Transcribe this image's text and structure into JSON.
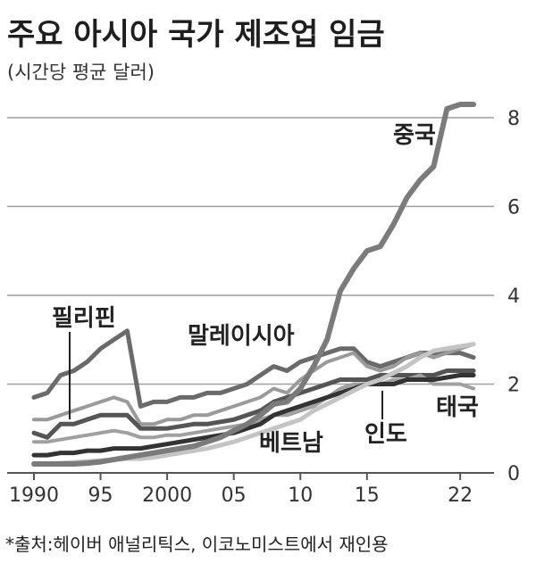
{
  "title": "주요 아시아 국가 제조업 임금",
  "subtitle": "(시간당 평균 달러)",
  "source_note": "*출처:헤이버 애널리틱스, 이코노미스트에서 재인용",
  "colors": {
    "china": "#7b7b7b",
    "philippines": "#6a6a6a",
    "malaysia": "#9a9a9a",
    "india": "#333333",
    "thailand": "#a0a0a0",
    "vietnam": "#c4c4c4",
    "extra": "#555555",
    "grid": "#9e9e9e"
  },
  "chart_data": {
    "type": "line",
    "title": "주요 아시아 국가 제조업 임금",
    "subtitle": "(시간당 평균 달러)",
    "xlabel": "",
    "ylabel": "",
    "xlim": [
      1990,
      2024
    ],
    "ylim": [
      0,
      8.4
    ],
    "grid": true,
    "x_ticks": [
      {
        "value": 1990,
        "label": "1990"
      },
      {
        "value": 1995,
        "label": "95"
      },
      {
        "value": 2000,
        "label": "2000"
      },
      {
        "value": 2005,
        "label": "05"
      },
      {
        "value": 2010,
        "label": "10"
      },
      {
        "value": 2015,
        "label": "15"
      },
      {
        "value": 2022,
        "label": "22"
      }
    ],
    "y_ticks": [
      {
        "value": 0,
        "label": "0"
      },
      {
        "value": 2,
        "label": "2"
      },
      {
        "value": 4,
        "label": "4"
      },
      {
        "value": 6,
        "label": "6"
      },
      {
        "value": 8,
        "label": "8"
      }
    ],
    "series": [
      {
        "name": "필리핀",
        "color_key": "philippines",
        "width": 5,
        "x": [
          1990,
          1991,
          1992,
          1993,
          1994,
          1995,
          1996,
          1997,
          1998,
          1999,
          2000,
          2001,
          2002,
          2003,
          2004,
          2005,
          2006,
          2007,
          2008,
          2009,
          2010,
          2011,
          2012,
          2013,
          2014,
          2015,
          2016,
          2017,
          2018,
          2019,
          2020,
          2021,
          2022,
          2023
        ],
        "y": [
          1.7,
          1.8,
          2.2,
          2.3,
          2.5,
          2.8,
          3.0,
          3.2,
          1.5,
          1.6,
          1.6,
          1.7,
          1.7,
          1.8,
          1.8,
          1.9,
          2.0,
          2.2,
          2.4,
          2.3,
          2.5,
          2.6,
          2.7,
          2.8,
          2.8,
          2.5,
          2.4,
          2.5,
          2.6,
          2.7,
          2.7,
          2.7,
          2.7,
          2.6
        ]
      },
      {
        "name": "말레이시아",
        "color_key": "malaysia",
        "width": 4,
        "x": [
          1990,
          1991,
          1992,
          1993,
          1994,
          1995,
          1996,
          1997,
          1998,
          1999,
          2000,
          2001,
          2002,
          2003,
          2004,
          2005,
          2006,
          2007,
          2008,
          2009,
          2010,
          2011,
          2012,
          2013,
          2014,
          2015,
          2016,
          2017,
          2018,
          2019,
          2020,
          2021,
          2022,
          2023
        ],
        "y": [
          1.2,
          1.2,
          1.3,
          1.4,
          1.5,
          1.6,
          1.7,
          1.6,
          1.1,
          1.1,
          1.2,
          1.2,
          1.3,
          1.3,
          1.4,
          1.5,
          1.6,
          1.7,
          1.9,
          1.8,
          2.1,
          2.3,
          2.5,
          2.6,
          2.7,
          2.4,
          2.3,
          2.4,
          2.6,
          2.7,
          2.6,
          2.7,
          2.8,
          2.9
        ]
      },
      {
        "name": "",
        "color_key": "extra",
        "width": 5,
        "x": [
          1990,
          1991,
          1992,
          1993,
          1994,
          1995,
          1996,
          1997,
          1998,
          1999,
          2000,
          2001,
          2002,
          2003,
          2004,
          2005,
          2006,
          2007,
          2008,
          2009,
          2010,
          2011,
          2012,
          2013,
          2014,
          2015,
          2016,
          2017,
          2018,
          2019,
          2020,
          2021,
          2022,
          2023
        ],
        "y": [
          0.9,
          0.8,
          1.1,
          1.1,
          1.2,
          1.3,
          1.3,
          1.3,
          1.0,
          1.0,
          1.0,
          1.05,
          1.1,
          1.1,
          1.15,
          1.2,
          1.3,
          1.4,
          1.6,
          1.7,
          1.8,
          1.9,
          2.0,
          2.1,
          2.1,
          2.1,
          2.2,
          2.2,
          2.2,
          2.2,
          2.2,
          2.3,
          2.3,
          2.3
        ]
      },
      {
        "name": "태국",
        "color_key": "thailand",
        "width": 4,
        "x": [
          1990,
          1991,
          1992,
          1993,
          1994,
          1995,
          1996,
          1997,
          1998,
          1999,
          2000,
          2001,
          2002,
          2003,
          2004,
          2005,
          2006,
          2007,
          2008,
          2009,
          2010,
          2011,
          2012,
          2013,
          2014,
          2015,
          2016,
          2017,
          2018,
          2019,
          2020,
          2021,
          2022,
          2023
        ],
        "y": [
          0.7,
          0.7,
          0.75,
          0.8,
          0.85,
          0.9,
          0.95,
          0.9,
          0.8,
          0.8,
          0.85,
          0.85,
          0.9,
          0.95,
          1.0,
          1.05,
          1.1,
          1.2,
          1.3,
          1.3,
          1.4,
          1.5,
          1.7,
          1.9,
          2.0,
          2.0,
          2.0,
          2.1,
          2.1,
          2.2,
          2.0,
          2.0,
          2.0,
          1.9
        ]
      },
      {
        "name": "인도",
        "color_key": "india",
        "width": 5,
        "x": [
          1990,
          1991,
          1992,
          1993,
          1994,
          1995,
          1996,
          1997,
          1998,
          1999,
          2000,
          2001,
          2002,
          2003,
          2004,
          2005,
          2006,
          2007,
          2008,
          2009,
          2010,
          2011,
          2012,
          2013,
          2014,
          2015,
          2016,
          2017,
          2018,
          2019,
          2020,
          2021,
          2022,
          2023
        ],
        "y": [
          0.4,
          0.4,
          0.45,
          0.45,
          0.5,
          0.5,
          0.55,
          0.55,
          0.55,
          0.6,
          0.65,
          0.7,
          0.75,
          0.8,
          0.85,
          0.9,
          1.0,
          1.1,
          1.3,
          1.4,
          1.5,
          1.6,
          1.7,
          1.8,
          1.9,
          2.0,
          2.0,
          2.0,
          2.1,
          2.1,
          2.1,
          2.15,
          2.2,
          2.2
        ]
      },
      {
        "name": "베트남",
        "color_key": "vietnam",
        "width": 5,
        "x": [
          1990,
          1991,
          1992,
          1993,
          1994,
          1995,
          1996,
          1997,
          1998,
          1999,
          2000,
          2001,
          2002,
          2003,
          2004,
          2005,
          2006,
          2007,
          2008,
          2009,
          2010,
          2011,
          2012,
          2013,
          2014,
          2015,
          2016,
          2017,
          2018,
          2019,
          2020,
          2021,
          2022,
          2023
        ],
        "y": [
          0.2,
          0.2,
          0.22,
          0.24,
          0.26,
          0.28,
          0.3,
          0.32,
          0.32,
          0.35,
          0.4,
          0.45,
          0.5,
          0.55,
          0.62,
          0.7,
          0.8,
          0.9,
          1.0,
          1.1,
          1.2,
          1.4,
          1.55,
          1.7,
          1.85,
          2.0,
          2.1,
          2.25,
          2.4,
          2.6,
          2.75,
          2.8,
          2.85,
          2.9
        ]
      },
      {
        "name": "중국",
        "color_key": "china",
        "width": 6,
        "x": [
          1990,
          1991,
          1992,
          1993,
          1994,
          1995,
          1996,
          1997,
          1998,
          1999,
          2000,
          2001,
          2002,
          2003,
          2004,
          2005,
          2006,
          2007,
          2008,
          2009,
          2010,
          2011,
          2012,
          2013,
          2014,
          2015,
          2016,
          2017,
          2018,
          2019,
          2020,
          2021,
          2022,
          2023
        ],
        "y": [
          0.2,
          0.2,
          0.2,
          0.2,
          0.22,
          0.25,
          0.3,
          0.35,
          0.4,
          0.45,
          0.5,
          0.55,
          0.6,
          0.7,
          0.8,
          0.95,
          1.1,
          1.3,
          1.55,
          1.6,
          1.9,
          2.4,
          3.0,
          4.1,
          4.6,
          5.0,
          5.1,
          5.6,
          6.2,
          6.6,
          6.9,
          8.2,
          8.3,
          8.3
        ]
      }
    ],
    "labels": [
      {
        "text": "중국",
        "series": "중국"
      },
      {
        "text": "필리핀",
        "series": "필리핀"
      },
      {
        "text": "말레이시아",
        "series": "말레이시아"
      },
      {
        "text": "태국",
        "series": "태국"
      },
      {
        "text": "인도",
        "series": "인도"
      },
      {
        "text": "베트남",
        "series": "베트남"
      }
    ]
  }
}
